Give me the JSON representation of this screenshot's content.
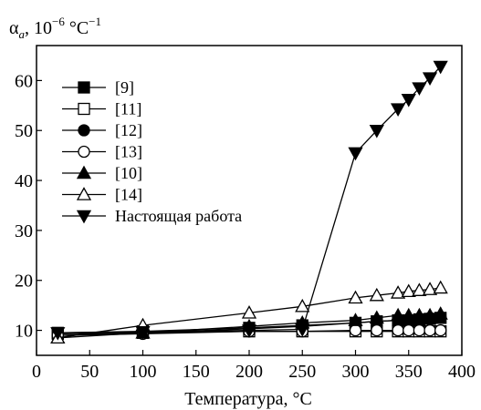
{
  "chart_data": {
    "type": "line",
    "ylabel_main": "α",
    "ylabel_sub": "a",
    "ylabel_rest": ", 10",
    "ylabel_exp1": "−6",
    "ylabel_unit": " °C",
    "ylabel_exp2": "−1",
    "xlabel": "Температура, °C",
    "xlim": [
      0,
      400
    ],
    "ylim": [
      5,
      67
    ],
    "xticks": [
      0,
      50,
      100,
      150,
      200,
      250,
      300,
      350,
      400
    ],
    "yticks": [
      10,
      20,
      30,
      40,
      50,
      60
    ],
    "legend_position": "top-left",
    "series": [
      {
        "name": "[9]",
        "marker": "square-filled",
        "x": [
          20,
          100,
          200,
          250,
          300,
          320,
          340,
          350,
          360,
          370,
          380
        ],
        "y": [
          9.5,
          9.8,
          10.5,
          11.0,
          11.5,
          11.8,
          12.0,
          12.0,
          12.2,
          12.3,
          12.5
        ]
      },
      {
        "name": "[11]",
        "marker": "square-open",
        "x": [
          20,
          100,
          200,
          250,
          300,
          320,
          340,
          350,
          360,
          370,
          380
        ],
        "y": [
          9.3,
          9.5,
          9.8,
          9.8,
          9.8,
          9.8,
          9.8,
          9.8,
          9.8,
          9.8,
          9.8
        ]
      },
      {
        "name": "[12]",
        "marker": "circle-filled",
        "x": [
          20,
          100,
          200,
          250,
          300,
          320,
          340,
          350,
          360,
          370,
          380
        ],
        "y": [
          9.0,
          9.5,
          10.3,
          10.8,
          11.5,
          11.8,
          12.0,
          12.2,
          12.3,
          12.5,
          12.5
        ]
      },
      {
        "name": "[13]",
        "marker": "circle-open",
        "x": [
          20,
          100,
          200,
          250,
          300,
          320,
          340,
          350,
          360,
          370,
          380
        ],
        "y": [
          9.0,
          9.3,
          9.8,
          9.8,
          10.0,
          10.0,
          10.0,
          10.0,
          10.0,
          10.0,
          10.0
        ]
      },
      {
        "name": "[10]",
        "marker": "triangle-up-filled",
        "x": [
          20,
          100,
          200,
          250,
          300,
          320,
          340,
          350,
          360,
          370,
          380
        ],
        "y": [
          8.5,
          9.5,
          10.8,
          11.5,
          12.0,
          12.5,
          13.0,
          13.0,
          13.0,
          13.0,
          13.3
        ]
      },
      {
        "name": "[14]",
        "marker": "triangle-up-open",
        "x": [
          20,
          100,
          200,
          250,
          300,
          320,
          340,
          350,
          360,
          370,
          380
        ],
        "y": [
          8.5,
          11.0,
          13.5,
          14.8,
          16.5,
          17.0,
          17.5,
          17.8,
          18.0,
          18.2,
          18.5
        ]
      },
      {
        "name": "Настоящая работа",
        "marker": "triangle-down-filled",
        "x": [
          20,
          100,
          200,
          250,
          300,
          320,
          340,
          350,
          360,
          370,
          380
        ],
        "y": [
          9.5,
          9.7,
          10.0,
          10.2,
          45.5,
          50.0,
          54.3,
          56.2,
          58.5,
          60.5,
          62.8
        ]
      }
    ]
  }
}
